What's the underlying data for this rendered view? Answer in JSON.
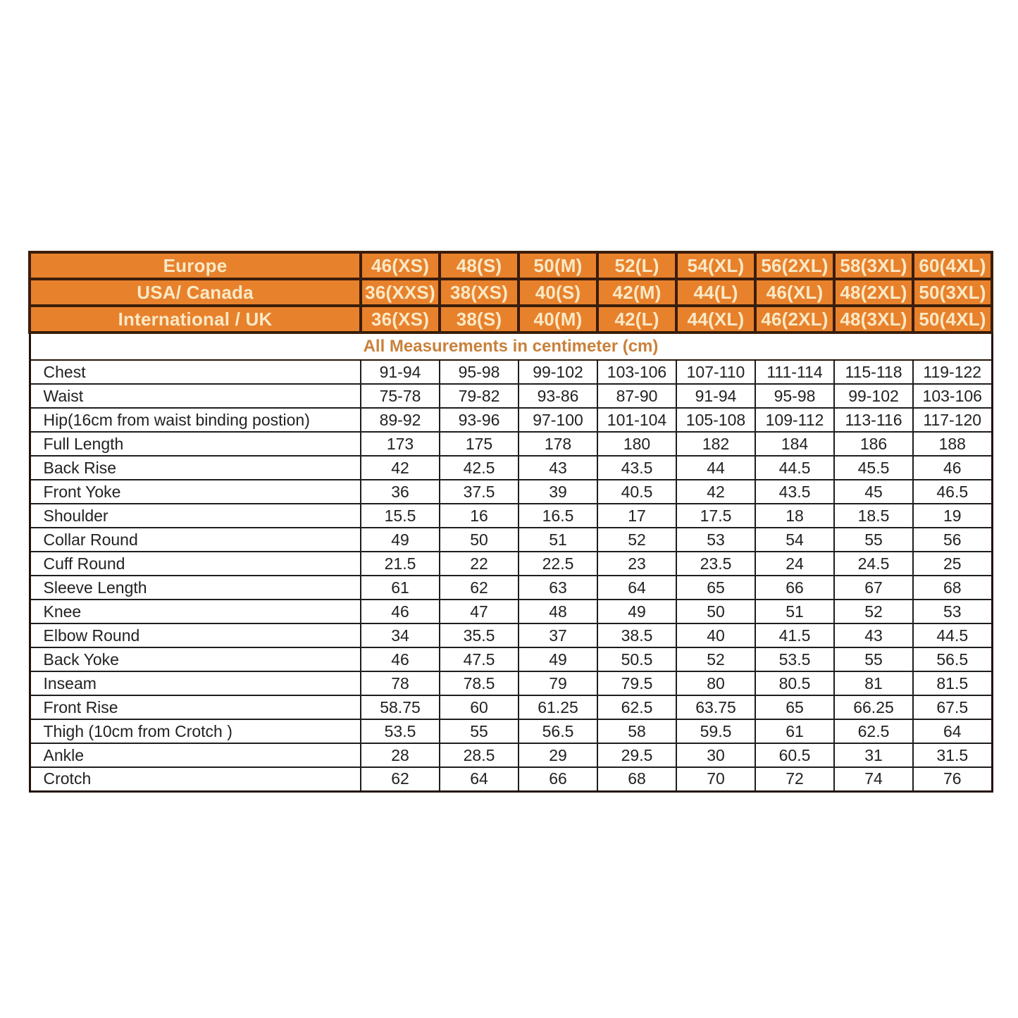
{
  "colors": {
    "header_bg": "#E8812C",
    "header_text": "#F9E9C6",
    "header_border": "#3A1D0A",
    "subtitle_text": "#C9813B",
    "border_dark": "#221109",
    "body_border": "#1E1E1E",
    "body_text": "#222222"
  },
  "chart_data": {
    "type": "table",
    "subtitle": "All Measurements in centimeter (cm)",
    "size_systems": [
      {
        "label": "Europe",
        "values": [
          "46(XS)",
          "48(S)",
          "50(M)",
          "52(L)",
          "54(XL)",
          "56(2XL)",
          "58(3XL)",
          "60(4XL)"
        ]
      },
      {
        "label": "USA/ Canada",
        "values": [
          "36(XXS)",
          "38(XS)",
          "40(S)",
          "42(M)",
          "44(L)",
          "46(XL)",
          "48(2XL)",
          "50(3XL)"
        ]
      },
      {
        "label": "International / UK",
        "values": [
          "36(XS)",
          "38(S)",
          "40(M)",
          "42(L)",
          "44(XL)",
          "46(2XL)",
          "48(3XL)",
          "50(4XL)"
        ]
      }
    ],
    "measurements": [
      {
        "label": "Chest",
        "values": [
          "91-94",
          "95-98",
          "99-102",
          "103-106",
          "107-110",
          "111-114",
          "115-118",
          "119-122"
        ]
      },
      {
        "label": "Waist",
        "values": [
          "75-78",
          "79-82",
          "93-86",
          "87-90",
          "91-94",
          "95-98",
          "99-102",
          "103-106"
        ]
      },
      {
        "label": "Hip(16cm from waist binding postion)",
        "values": [
          "89-92",
          "93-96",
          "97-100",
          "101-104",
          "105-108",
          "109-112",
          "113-116",
          "117-120"
        ]
      },
      {
        "label": "Full Length",
        "values": [
          "173",
          "175",
          "178",
          "180",
          "182",
          "184",
          "186",
          "188"
        ]
      },
      {
        "label": "Back Rise",
        "values": [
          "42",
          "42.5",
          "43",
          "43.5",
          "44",
          "44.5",
          "45.5",
          "46"
        ]
      },
      {
        "label": "Front Yoke",
        "values": [
          "36",
          "37.5",
          "39",
          "40.5",
          "42",
          "43.5",
          "45",
          "46.5"
        ]
      },
      {
        "label": "Shoulder",
        "values": [
          "15.5",
          "16",
          "16.5",
          "17",
          "17.5",
          "18",
          "18.5",
          "19"
        ]
      },
      {
        "label": "Collar Round",
        "values": [
          "49",
          "50",
          "51",
          "52",
          "53",
          "54",
          "55",
          "56"
        ]
      },
      {
        "label": "Cuff Round",
        "values": [
          "21.5",
          "22",
          "22.5",
          "23",
          "23.5",
          "24",
          "24.5",
          "25"
        ]
      },
      {
        "label": "Sleeve Length",
        "values": [
          "61",
          "62",
          "63",
          "64",
          "65",
          "66",
          "67",
          "68"
        ]
      },
      {
        "label": "Knee",
        "values": [
          "46",
          "47",
          "48",
          "49",
          "50",
          "51",
          "52",
          "53"
        ]
      },
      {
        "label": "Elbow Round",
        "values": [
          "34",
          "35.5",
          "37",
          "38.5",
          "40",
          "41.5",
          "43",
          "44.5"
        ]
      },
      {
        "label": "Back Yoke",
        "values": [
          "46",
          "47.5",
          "49",
          "50.5",
          "52",
          "53.5",
          "55",
          "56.5"
        ]
      },
      {
        "label": "Inseam",
        "values": [
          "78",
          "78.5",
          "79",
          "79.5",
          "80",
          "80.5",
          "81",
          "81.5"
        ]
      },
      {
        "label": "Front Rise",
        "values": [
          "58.75",
          "60",
          "61.25",
          "62.5",
          "63.75",
          "65",
          "66.25",
          "67.5"
        ]
      },
      {
        "label": "Thigh (10cm from Crotch )",
        "values": [
          "53.5",
          "55",
          "56.5",
          "58",
          "59.5",
          "61",
          "62.5",
          "64"
        ]
      },
      {
        "label": "Ankle",
        "values": [
          "28",
          "28.5",
          "29",
          "29.5",
          "30",
          "60.5",
          "31",
          "31.5"
        ]
      },
      {
        "label": "Crotch",
        "values": [
          "62",
          "64",
          "66",
          "68",
          "70",
          "72",
          "74",
          "76"
        ]
      }
    ]
  }
}
